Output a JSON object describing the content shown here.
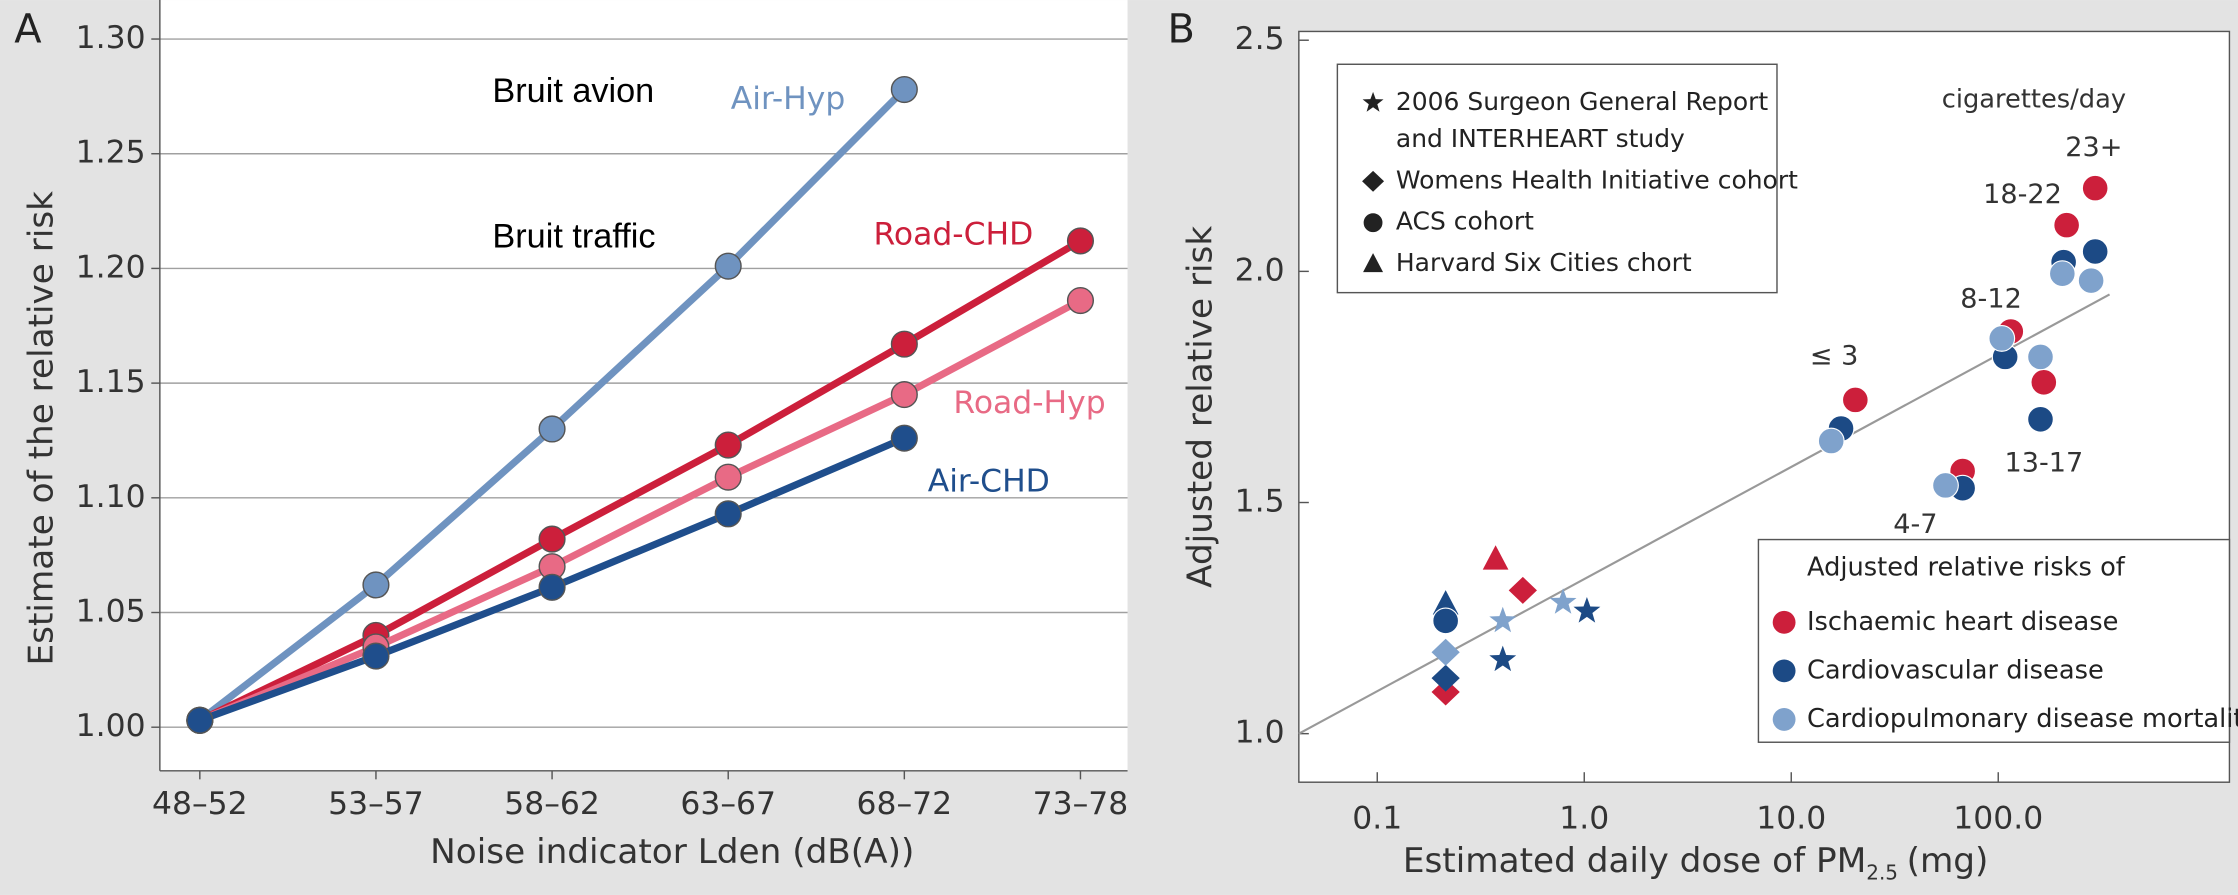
{
  "chart_data": [
    {
      "type": "line",
      "panel": "A",
      "ylabel": "Estimate of the relative risk",
      "xlabel": "Noise indicator Lden (dB(A))",
      "annotations": [
        "Bruit avion",
        "Bruit traffic"
      ],
      "categories": [
        "48–52",
        "53–57",
        "58–62",
        "63–67",
        "68–72",
        "73–78"
      ],
      "ylim": [
        0.981,
        1.317
      ],
      "yticks": [
        {
          "value": 1.0,
          "label": "1.00"
        },
        {
          "value": 1.05,
          "label": "1.05"
        },
        {
          "value": 1.1,
          "label": "1.10"
        },
        {
          "value": 1.15,
          "label": "1.15"
        },
        {
          "value": 1.2,
          "label": "1.20"
        },
        {
          "value": 1.25,
          "label": "1.25"
        },
        {
          "value": 1.3,
          "label": "1.30"
        }
      ],
      "grid": true,
      "series": [
        {
          "name": "Air-Hyp",
          "color": "#6f93c0",
          "values": [
            1.003,
            1.062,
            1.13,
            1.201,
            1.278,
            null
          ]
        },
        {
          "name": "Road-CHD",
          "color": "#cc1f3b",
          "values": [
            1.003,
            1.04,
            1.082,
            1.123,
            1.167,
            1.212
          ]
        },
        {
          "name": "Road-Hyp",
          "color": "#e86a85",
          "values": [
            1.003,
            1.035,
            1.07,
            1.109,
            1.145,
            1.186
          ]
        },
        {
          "name": "Air-CHD",
          "color": "#1f4e8c",
          "values": [
            1.003,
            1.031,
            1.061,
            1.093,
            1.126,
            null
          ]
        }
      ]
    },
    {
      "type": "scatter",
      "panel": "B",
      "ylabel": "Adjusted relative risk",
      "xlabel": {
        "text": "Estimated daily dose of PM",
        "sub": "2.5",
        "tail": "(mg)"
      },
      "xscale": "log",
      "xlim": [
        0.0418,
        1309
      ],
      "xticks": [
        0.1,
        {
          "value": 1,
          "label": "1.0"
        },
        {
          "value": 10,
          "label": "10.0"
        },
        {
          "value": 100,
          "label": "100.0"
        }
      ],
      "ylim": [
        0.895,
        2.519
      ],
      "yticks": [
        {
          "value": 1,
          "label": "1.0"
        },
        1.5,
        {
          "value": 2,
          "label": "2.0"
        },
        2.5
      ],
      "marker_legend": [
        {
          "label": [
            "2006 Surgeon General Report",
            "and INTERHEART study"
          ],
          "marker": "star"
        },
        {
          "label": [
            "Womens Health Initiative cohort"
          ],
          "marker": "diamond"
        },
        {
          "label": [
            "ACS cohort"
          ],
          "marker": "hexagon"
        },
        {
          "label": [
            "Harvard Six Cities chort"
          ],
          "marker": "triangle"
        }
      ],
      "legend_title": "Adjusted relative risks of",
      "group_title": "cigarettes/day",
      "groups": [
        "≤ 3",
        "4-7",
        "8-12",
        "13-17",
        "18-22",
        "23+"
      ],
      "fit_line": {
        "x": [
          0.0418,
          345
        ],
        "y": [
          1.0,
          1.95
        ]
      },
      "series": [
        {
          "name": "Ischaemic heart disease",
          "color": "#cc1f3b",
          "markers": [
            "triangle",
            "diamond",
            "diamond",
            "hexagon",
            "hexagon",
            "hexagon",
            "hexagon",
            "hexagon",
            "hexagon"
          ],
          "x": [
            0.373,
            0.214,
            0.505,
            20.4,
            67.3,
            115,
            166,
            214,
            294
          ],
          "y": [
            1.377,
            1.09,
            1.31,
            1.722,
            1.568,
            1.87,
            1.76,
            2.1,
            2.18
          ]
        },
        {
          "name": "Cardiovascular disease",
          "color": "#1c4a85",
          "markers": [
            "triangle",
            "hexagon",
            "diamond",
            "star",
            "star",
            "hexagon",
            "hexagon",
            "hexagon",
            "hexagon",
            "hexagon",
            "hexagon"
          ],
          "x": [
            0.214,
            0.214,
            0.214,
            0.404,
            1.03,
            17.4,
            67.3,
            108,
            160,
            207,
            294
          ],
          "y": [
            1.28,
            1.244,
            1.12,
            1.16,
            1.265,
            1.66,
            1.531,
            1.815,
            1.68,
            2.02,
            2.043
          ]
        },
        {
          "name": "Cardiopulmonary disease mortality",
          "color": "#7fa2cc",
          "markers": [
            "diamond",
            "star",
            "star",
            "hexagon",
            "hexagon",
            "hexagon",
            "hexagon",
            "hexagon",
            "hexagon"
          ],
          "x": [
            0.214,
            0.404,
            0.79,
            15.6,
            55.6,
            104,
            160,
            204,
            281
          ],
          "y": [
            1.176,
            1.244,
            1.284,
            1.633,
            1.537,
            1.855,
            1.815,
            1.995,
            1.98
          ]
        }
      ]
    }
  ]
}
